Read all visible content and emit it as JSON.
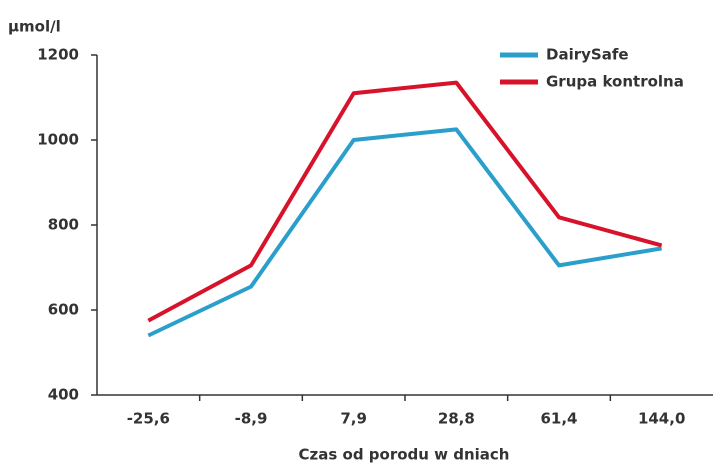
{
  "chart_data": {
    "type": "line",
    "y_label": "µmol/l",
    "x_label": "Czas od porodu w dniach",
    "categories": [
      "-25,6",
      "-8,9",
      "7,9",
      "28,8",
      "61,4",
      "144,0"
    ],
    "series": [
      {
        "name": "DairySafe",
        "color": "#2b9fcb",
        "values": [
          540,
          655,
          1000,
          1025,
          705,
          745
        ]
      },
      {
        "name": "Grupa kontrolna",
        "color": "#d7132b",
        "values": [
          575,
          705,
          1110,
          1135,
          818,
          752
        ]
      }
    ],
    "ylim": [
      400,
      1200
    ],
    "yticks": [
      400,
      600,
      800,
      1000,
      1200
    ]
  }
}
